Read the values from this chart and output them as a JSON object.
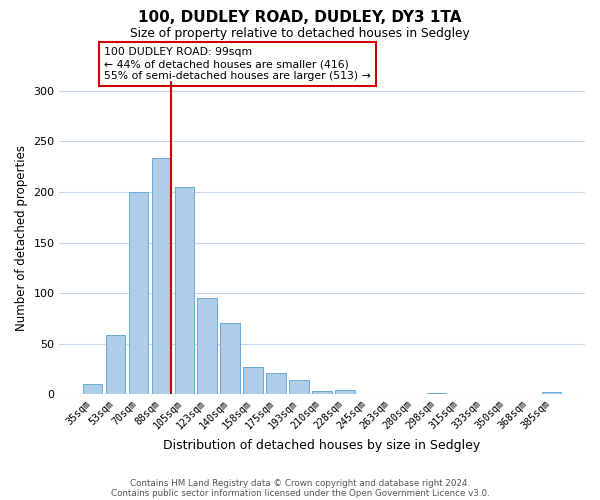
{
  "title": "100, DUDLEY ROAD, DUDLEY, DY3 1TA",
  "subtitle": "Size of property relative to detached houses in Sedgley",
  "xlabel": "Distribution of detached houses by size in Sedgley",
  "ylabel": "Number of detached properties",
  "bar_labels": [
    "35sqm",
    "53sqm",
    "70sqm",
    "88sqm",
    "105sqm",
    "123sqm",
    "140sqm",
    "158sqm",
    "175sqm",
    "193sqm",
    "210sqm",
    "228sqm",
    "245sqm",
    "263sqm",
    "280sqm",
    "298sqm",
    "315sqm",
    "333sqm",
    "350sqm",
    "368sqm",
    "385sqm"
  ],
  "bar_values": [
    10,
    59,
    200,
    234,
    205,
    95,
    71,
    27,
    21,
    14,
    3,
    4,
    0,
    0,
    0,
    1,
    0,
    0,
    0,
    0,
    2
  ],
  "bar_color": "#aecde8",
  "bar_edge_color": "#6aaad4",
  "ylim": [
    0,
    310
  ],
  "yticks": [
    0,
    50,
    100,
    150,
    200,
    250,
    300
  ],
  "vline_x_index": 3,
  "vline_color": "#cc0000",
  "annotation_text": "100 DUDLEY ROAD: 99sqm\n← 44% of detached houses are smaller (416)\n55% of semi-detached houses are larger (513) →",
  "annotation_box_color": "#ffffff",
  "annotation_box_edge_color": "#cc0000",
  "footer_line1": "Contains HM Land Registry data © Crown copyright and database right 2024.",
  "footer_line2": "Contains public sector information licensed under the Open Government Licence v3.0.",
  "background_color": "#ffffff",
  "grid_color": "#c8d8e8"
}
